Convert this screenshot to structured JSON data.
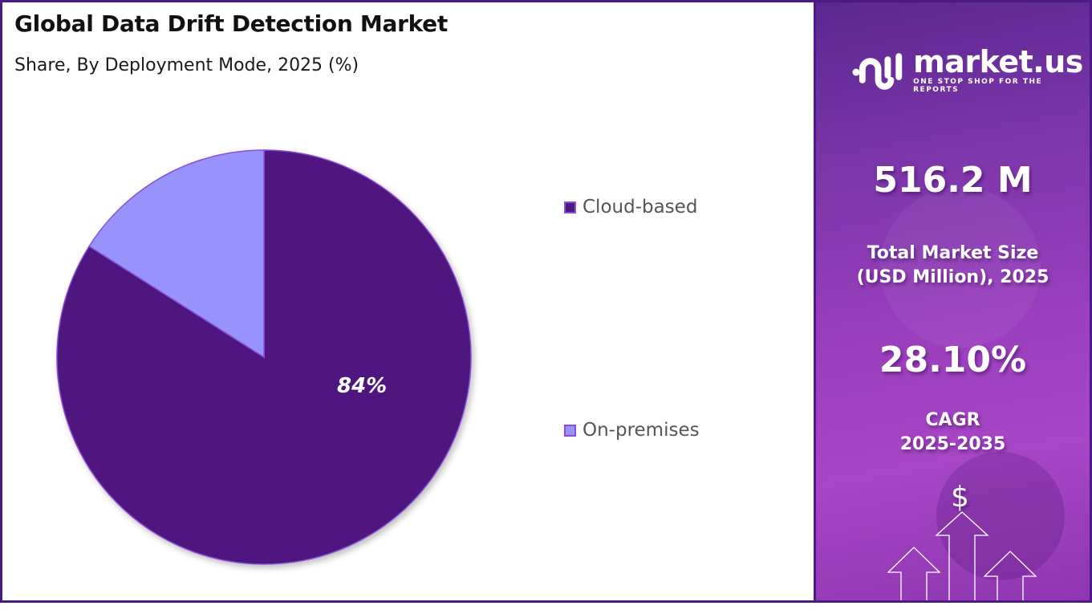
{
  "header": {
    "title": "Global Data Drift Detection Market",
    "subtitle": "Share, By Deployment Mode, 2025 (%)"
  },
  "chart_data": {
    "type": "pie",
    "title": "Global Data Drift Detection Market",
    "subtitle": "Share, By Deployment Mode, 2025 (%)",
    "categories": [
      "Cloud-based",
      "On-premises"
    ],
    "values": [
      84,
      16
    ],
    "colors": [
      "#4f1780",
      "#9893fb"
    ],
    "data_labels": [
      "84%",
      ""
    ],
    "legend_position": "right",
    "start_angle_deg": 0,
    "direction": "clockwise"
  },
  "pie": {
    "label_cloud": "84%"
  },
  "legend": {
    "items": [
      {
        "label": "Cloud-based",
        "color": "#4f1780"
      },
      {
        "label": "On-premises",
        "color": "#9893fb"
      }
    ]
  },
  "side_panel": {
    "logo": {
      "name": "market.us",
      "tagline": "ONE STOP SHOP FOR THE REPORTS"
    },
    "market_size_value": "516.2 M",
    "market_size_label_line1": "Total Market Size",
    "market_size_label_line2": "(USD Million), 2025",
    "cagr_value": "28.10%",
    "cagr_label_line1": "CAGR",
    "cagr_label_line2": "2025-2035",
    "dollar_symbol": "$"
  },
  "colors": {
    "border": "#4a1a86",
    "cloud": "#4f1780",
    "on_premises": "#9893fb",
    "slice_outline": "#8a4fd6"
  }
}
